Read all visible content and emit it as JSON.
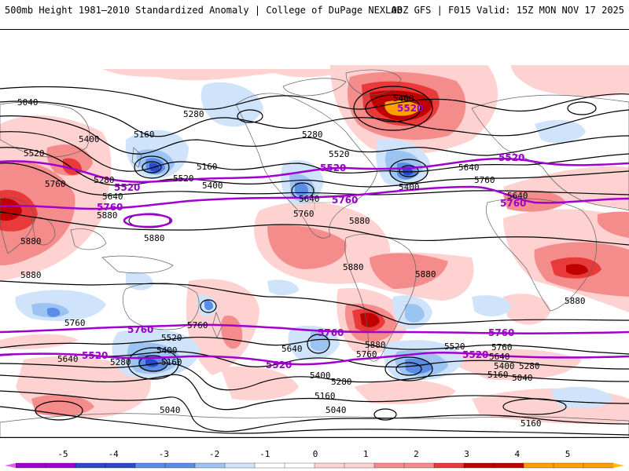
{
  "header": {
    "left": "500mb Height 1981–2010 Standardized Anomaly | College of DuPage NEXLAB",
    "right": "00Z GFS | F015 Valid: 15Z MON NOV 17 2025"
  },
  "colors": {
    "pos1": "#ffd2d2",
    "pos2": "#f58c8c",
    "pos3": "#e83a3a",
    "pos4": "#c00000",
    "pos5": "#ffa000",
    "neg1": "#cfe4fb",
    "neg2": "#9cc4f2",
    "neg3": "#5a8ee6",
    "neg4": "#2c49c8",
    "highlight": "#a000d0",
    "contour": "#000000"
  },
  "contour_labels": {
    "c5040": "5040",
    "c5160": "5160",
    "c5280": "5280",
    "c5400": "5400",
    "c5520": "5520",
    "c5640": "5640",
    "c5760": "5760",
    "c5880": "5880"
  },
  "chart_data": {
    "type": "map",
    "field": "500mb geopotential height (dam contours) with standardized anomaly shading",
    "contour_levels": [
      5040,
      5160,
      5280,
      5400,
      5520,
      5640,
      5760,
      5880
    ],
    "highlighted_levels": [
      5520,
      5760
    ],
    "colorbar": {
      "ticks": [
        "-5",
        "-4",
        "-3",
        "-2",
        "-1",
        "0",
        "1",
        "2",
        "3",
        "4",
        "5"
      ],
      "min": -5,
      "max": 5
    }
  }
}
